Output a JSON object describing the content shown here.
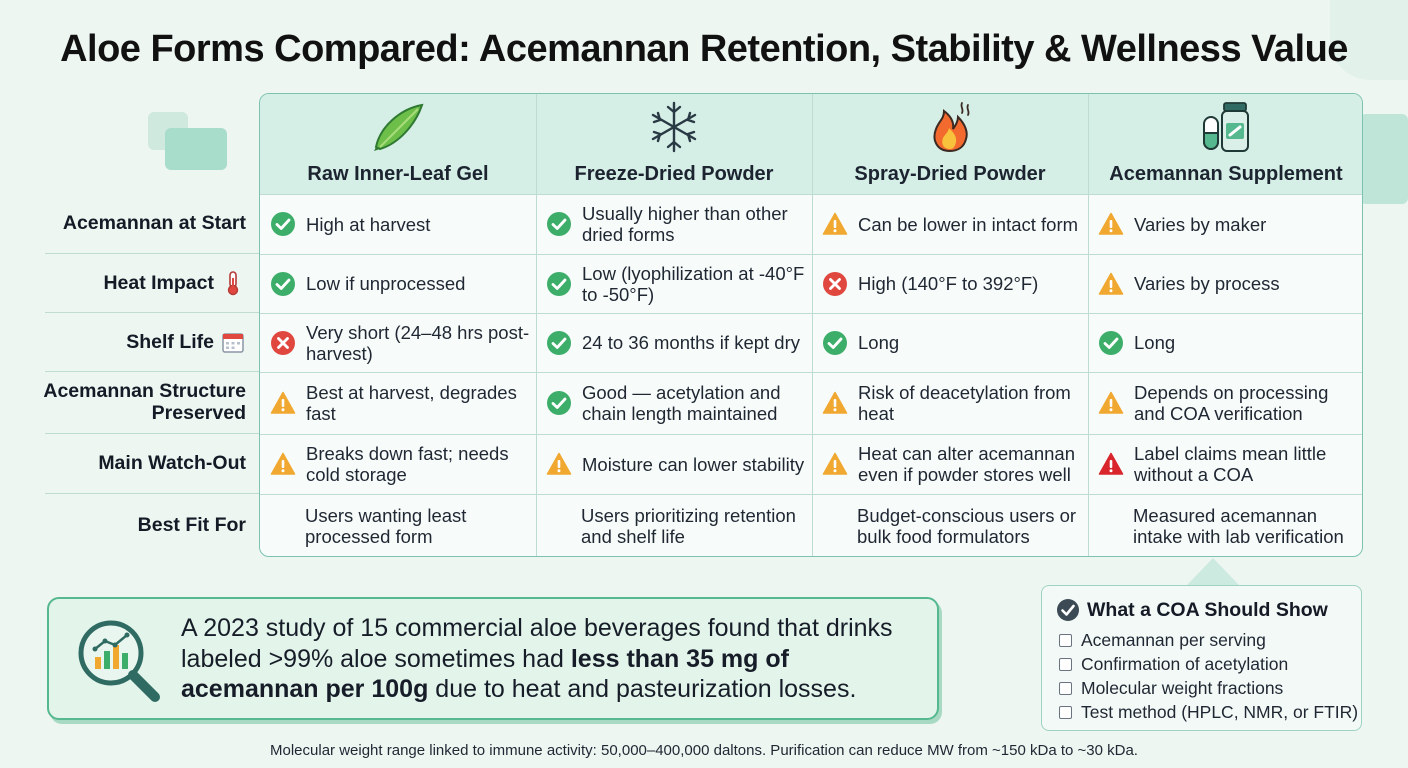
{
  "title": "Aloe Forms Compared: Acemannan Retention, Stability & Wellness Value",
  "columns": [
    {
      "label": "Raw Inner-Leaf Gel",
      "icon": "aloe-leaf-icon"
    },
    {
      "label": "Freeze-Dried Powder",
      "icon": "snowflake-icon"
    },
    {
      "label": "Spray-Dried Powder",
      "icon": "flame-icon"
    },
    {
      "label": "Acemannan Supplement",
      "icon": "supplement-bottle-icon"
    }
  ],
  "rows": [
    {
      "label": "Acemannan at Start",
      "label_icon": null,
      "cells": [
        {
          "status": "check",
          "text": "High at harvest"
        },
        {
          "status": "check",
          "text": "Usually higher than other dried forms"
        },
        {
          "status": "warning",
          "text": "Can be lower in intact form"
        },
        {
          "status": "warning",
          "text": "Varies by maker"
        }
      ]
    },
    {
      "label": "Heat Impact",
      "label_icon": "thermometer-icon",
      "cells": [
        {
          "status": "check",
          "text": "Low if unprocessed"
        },
        {
          "status": "check",
          "text": "Low (lyophilization at -40°F to -50°F)"
        },
        {
          "status": "cross",
          "text": "High (140°F to 392°F)"
        },
        {
          "status": "warning",
          "text": "Varies by process"
        }
      ]
    },
    {
      "label": "Shelf Life",
      "label_icon": "calendar-icon",
      "cells": [
        {
          "status": "cross",
          "text": "Very short (24–48 hrs post-harvest)"
        },
        {
          "status": "check",
          "text": "24 to 36 months if kept dry"
        },
        {
          "status": "check",
          "text": "Long"
        },
        {
          "status": "check",
          "text": "Long"
        }
      ]
    },
    {
      "label": "Acemannan Structure Preserved",
      "label_icon": null,
      "cells": [
        {
          "status": "warning",
          "text": "Best at harvest, degrades fast"
        },
        {
          "status": "check",
          "text": "Good — acetylation and chain length maintained"
        },
        {
          "status": "warning",
          "text": "Risk of deacetylation from heat"
        },
        {
          "status": "warning",
          "text": "Depends on processing and COA verification"
        }
      ]
    },
    {
      "label": "Main Watch-Out",
      "label_icon": null,
      "cells": [
        {
          "status": "warning",
          "text": "Breaks down fast; needs cold storage"
        },
        {
          "status": "warning",
          "text": "Moisture can lower stability"
        },
        {
          "status": "warning",
          "text": "Heat can alter acemannan even if powder stores well"
        },
        {
          "status": "alert",
          "text": "Label claims mean little without a COA"
        }
      ]
    },
    {
      "label": "Best Fit For",
      "label_icon": null,
      "cells": [
        {
          "status": "none",
          "text": "Users wanting least processed form"
        },
        {
          "status": "none",
          "text": "Users prioritizing retention and shelf life"
        },
        {
          "status": "none",
          "text": "Budget-conscious users or bulk food formulators"
        },
        {
          "status": "none",
          "text": "Measured acemannan intake with lab verification"
        }
      ]
    }
  ],
  "study": {
    "text_before": "A 2023 study of 15 commercial aloe beverages found that drinks labeled >99% aloe sometimes had ",
    "text_bold": "less than 35 mg of acemannan per 100g",
    "text_after": " due to heat and pasteurization losses."
  },
  "coa": {
    "title": "What a COA Should Show",
    "items": [
      "Acemannan per serving",
      "Confirmation of acetylation",
      "Molecular weight fractions",
      "Test method (HPLC, NMR, or FTIR)"
    ]
  },
  "footnote": "Molecular weight range linked to immune activity: 50,000–400,000 daltons. Purification can reduce MW from ~150 kDa to ~30 kDa.",
  "colors": {
    "check": "#3cae6a",
    "warning": "#f0a830",
    "cross": "#e0483f",
    "alert": "#d8262c",
    "accent": "#56b88f"
  }
}
